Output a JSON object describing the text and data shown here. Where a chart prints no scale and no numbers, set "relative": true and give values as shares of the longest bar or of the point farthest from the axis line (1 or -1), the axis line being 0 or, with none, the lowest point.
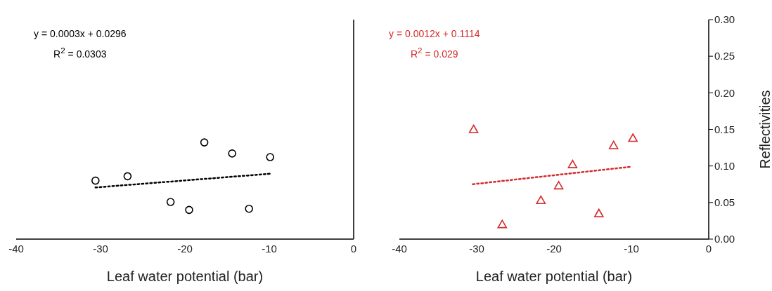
{
  "chart_data": [
    {
      "type": "scatter",
      "relative": true,
      "xlabel": "Leaf water potential (bar)",
      "xlim": [
        -40,
        0
      ],
      "xticks": [
        -40,
        -30,
        -20,
        -10,
        0
      ],
      "tick_labels": "x",
      "grid": false,
      "legend": false,
      "annotations": [
        "y = 0.0003x + 0.0296",
        "R$^{2}$ = 0.0303"
      ],
      "series": [
        {
          "color": "#000000",
          "marker": "circle",
          "x": [
            -30.6,
            -26.8,
            -21.7,
            -19.5,
            -17.7,
            -14.4,
            -12.4,
            -9.9
          ],
          "values": [
            0.605,
            0.65,
            0.384,
            0.302,
            1,
            0.886,
            0.314,
            0.848
          ]
        },
        {
          "type": "line",
          "color": "#000000",
          "marker": "none",
          "line_style": "dotted",
          "x": [
            -30.6,
            -9.9
          ],
          "values": [
            0.534,
            0.676
          ]
        }
      ]
    },
    {
      "type": "scatter",
      "xlabel": "Leaf water potential (bar)",
      "ylabel": "Reflectivities",
      "xlim": [
        -40,
        0
      ],
      "xticks": [
        -40,
        -30,
        -20,
        -10,
        0
      ],
      "ylim": [
        0,
        0.3
      ],
      "yticks": [
        {
          "value": 0,
          "label": "0.00"
        },
        {
          "value": 0.05,
          "label": "0.05"
        },
        {
          "value": 0.1,
          "label": "0.10"
        },
        {
          "value": 0.15,
          "label": "0.15"
        },
        {
          "value": 0.2,
          "label": "0.20"
        },
        {
          "value": 0.25,
          "label": "0.25"
        },
        {
          "value": 0.3,
          "label": "0.30"
        }
      ],
      "grid": false,
      "legend": false,
      "annotations": [
        "y = 0.0012x + 0.1114",
        "R$^{2}$ = 0.029"
      ],
      "series": [
        {
          "color": "#d42a2a",
          "marker": "triangle",
          "x": [
            -30.4,
            -26.7,
            -21.7,
            -19.4,
            -17.6,
            -14.2,
            -12.3,
            -9.8
          ],
          "values": [
            0.15,
            0.02,
            0.053,
            0.073,
            0.102,
            0.035,
            0.128,
            0.138
          ]
        },
        {
          "type": "line",
          "color": "#d42a2a",
          "marker": "none",
          "line_style": "dotted",
          "x": [
            -30.5,
            -10
          ],
          "values": [
            0.075,
            0.099
          ]
        }
      ]
    }
  ]
}
